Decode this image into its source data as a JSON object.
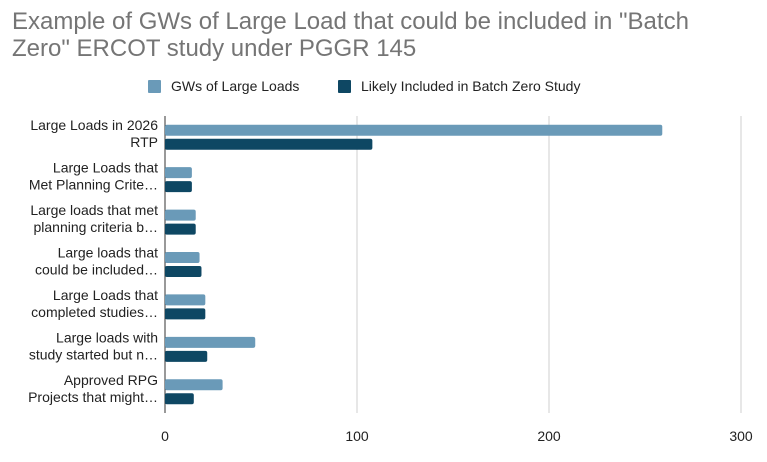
{
  "chart_data": {
    "type": "bar",
    "orientation": "horizontal",
    "title": "Example of GWs of Large Load that could be included in \"Batch Zero\" ERCOT study under PGGR 145",
    "xlabel": "",
    "ylabel": "",
    "categories": [
      [
        "Large Loads in 2026",
        "RTP"
      ],
      [
        "Large Loads that",
        "Met Planning Crite…"
      ],
      [
        "Large loads that met",
        "planning criteria b…"
      ],
      [
        "Large loads that",
        "could be included…"
      ],
      [
        "Large Loads that",
        "completed studies…"
      ],
      [
        "Large loads with",
        "study started but n…"
      ],
      [
        "Approved RPG",
        "Projects that might…"
      ]
    ],
    "series": [
      {
        "name": "GWs of Large Loads",
        "color": "#6a9ab8",
        "values": [
          259,
          14,
          16,
          18,
          21,
          47,
          30
        ]
      },
      {
        "name": "Likely Included in Batch Zero Study",
        "color": "#0e4763",
        "values": [
          108,
          14,
          16,
          19,
          21,
          22,
          15
        ]
      }
    ],
    "xlim": [
      0,
      300
    ],
    "xticks": [
      "0",
      "100",
      "200",
      "300"
    ],
    "grid": true,
    "legend_position": "top"
  }
}
